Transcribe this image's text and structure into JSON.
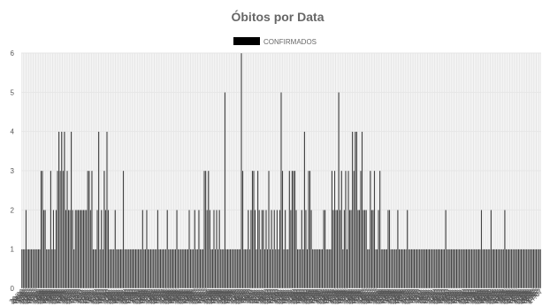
{
  "chart_data": {
    "type": "bar",
    "title": "Óbitos por Data",
    "legend": {
      "position": "top",
      "color": "#000000"
    },
    "grid": true,
    "ylim": [
      0,
      6
    ],
    "yticks": [
      "0",
      "1",
      "2",
      "3",
      "4",
      "5",
      "6"
    ],
    "xticks": [
      "26/06",
      "29/06",
      "02/07",
      "05/07",
      "08/07",
      "11/07",
      "14/07",
      "17/07",
      "20/07",
      "23/07",
      "26/07",
      "29/07",
      "01/08",
      "04/08",
      "07/08",
      "10/08",
      "13/08",
      "16/08",
      "19/08",
      "22/08",
      "25/08",
      "28/08",
      "31/08",
      "03/09",
      "06/09",
      "09/09",
      "12/09",
      "15/09",
      "18/09",
      "21/09",
      "24/09",
      "27/09",
      "30/09",
      "03/10",
      "06/10",
      "09/10",
      "12/10",
      "15/10",
      "18/10",
      "21/10",
      "24/10",
      "27/10",
      "30/10",
      "02/11",
      "05/11",
      "08/11",
      "11/11",
      "14/11",
      "17/11",
      "20/11",
      "23/11",
      "26/11",
      "29/11",
      "02/12",
      "05/12",
      "08/12",
      "11/12",
      "14/12",
      "17/12",
      "20/12",
      "23/12",
      "26/12",
      "29/12",
      "01/01",
      "04/01",
      "07/01",
      "10/01",
      "13/01",
      "16/01",
      "19/01",
      "22/01",
      "25/01",
      "28/01",
      "31/01",
      "03/02",
      "06/02",
      "09/02",
      "12/02",
      "15/02",
      "18/02",
      "21/02",
      "24/02",
      "27/02",
      "02/03",
      "05/03",
      "08/03",
      "11/03",
      "14/03",
      "17/03",
      "20/03",
      "23/03",
      "26/03",
      "29/03",
      "01/04",
      "04/04",
      "07/04",
      "10/04",
      "13/04",
      "16/04",
      "19/04",
      "22/04",
      "25/04",
      "28/04",
      "01/05",
      "04/05",
      "07/05",
      "10/05",
      "13/05",
      "16/05",
      "19/05",
      "22/05",
      "25/05",
      "28/05",
      "31/05",
      "03/06",
      "06/06",
      "09/06",
      "12/06",
      "15/06",
      "18/06",
      "21/06",
      "24/06",
      "27/06",
      "30/06",
      "03/07",
      "06/07",
      "09/07",
      "12/07",
      "15/07",
      "18/07",
      "21/07",
      "24/07",
      "27/07",
      "30/07",
      "02/08",
      "05/08",
      "08/08",
      "11/08",
      "14/08",
      "17/08",
      "20/08",
      "23/08",
      "26/08",
      "29/08",
      "01/09",
      "04/09",
      "07/09",
      "10/09",
      "13/09",
      "16/09",
      "19/09",
      "22/09",
      "25/09",
      "28/09",
      "01/10",
      "04/10",
      "07/10",
      "10/10",
      "13/10",
      "16/10",
      "19/10",
      "22/10",
      "25/10",
      "28/10",
      "31/10",
      "03/11",
      "06/11",
      "09/11",
      "12/11",
      "15/11",
      "18/11",
      "21/11",
      "24/11",
      "27/11",
      "30/11",
      "03/12",
      "06/12",
      "09/12",
      "12/12",
      "15/12",
      "18/12",
      "21/12",
      "24/12",
      "27/12",
      "30/12",
      "02/01",
      "05/01",
      "08/01",
      "11/01",
      "14/01",
      "17/01",
      "20/01",
      "23/01",
      "26/01",
      "29/01",
      "01/02",
      "04/02",
      "07/02",
      "10/02",
      "13/02",
      "16/02",
      "19/02",
      "22/02",
      "25/02",
      "28/02",
      "03/03",
      "06/03",
      "09/03",
      "12/03",
      "15/03",
      "18/03",
      "21/03",
      "24/03",
      "27/03",
      "30/03",
      "02/04",
      "05/04",
      "08/04",
      "11/04",
      "14/04",
      "17/04",
      "20/04",
      "23/04",
      "26/04",
      "29/04",
      "02/05",
      "05/05",
      "08/05",
      "11/05",
      "14/05",
      "17/05",
      "20/05",
      "23/05",
      "26/05",
      "29/05",
      "01/06",
      "04/06",
      "07/06",
      "10/06",
      "13/06",
      "16/06",
      "19/06",
      "22/06",
      "25/06",
      "28/06",
      "01/07",
      "04/07",
      "07/07",
      "10/07",
      "13/07",
      "16/07",
      "19/07",
      "22/07",
      "25/07",
      "28/07",
      "31/07",
      "03/08",
      "06/08",
      "09/08",
      "12/08",
      "15/08",
      "18/08",
      "21/08",
      "24/08",
      "27/08",
      "30/08",
      "02/09",
      "05/09",
      "08/09",
      "11/09",
      "14/09",
      "17/09",
      "20/09",
      "23/09",
      "26/09",
      "29/09",
      "02/10",
      "05/10",
      "08/10",
      "11/10",
      "14/10",
      "17/10",
      "20/10",
      "23/10",
      "26/10",
      "29/10",
      "01/11",
      "04/11",
      "07/11",
      "10/11",
      "13/11",
      "16/11",
      "19/11",
      "22/11",
      "25/11",
      "28/11",
      "01/12",
      "04/12",
      "07/12",
      "10/12",
      "13/12",
      "16/12",
      "19/12",
      "22/12",
      "25/12",
      "28/12",
      "31/12",
      "03/01",
      "06/01",
      "09/01",
      "12/01",
      "15/01",
      "18/01",
      "21/01",
      "24/01",
      "27/01",
      "30/01",
      "02/02",
      "05/02",
      "08/02",
      "11/02",
      "14/02",
      "17/02",
      "20/02",
      "23/02",
      "26/02",
      "01/03",
      "04/03",
      "07/03",
      "10/03",
      "13/03",
      "16/03",
      "19/03",
      "22/03",
      "25/03",
      "28/03",
      "31/03",
      "03/04",
      "06/04",
      "09/04",
      "12/04",
      "15/04",
      "18/04",
      "21/04",
      "24/04",
      "27/04",
      "30/04",
      "03/05",
      "06/05",
      "09/05",
      "12/05",
      "15/05",
      "18/05",
      "21/05",
      "24/05",
      "27/05",
      "30/05",
      "02/06",
      "05/06",
      "08/06",
      "11/06",
      "14/06",
      "17/06",
      "20/06",
      "23/06",
      "26/06",
      "29/06",
      "02/07",
      "05/07",
      "08/07",
      "11/07",
      "14/07",
      "17/07"
    ],
    "series": [
      {
        "name": "CONFIRMADOS",
        "color": "#424242",
        "values": [
          1,
          1,
          1,
          2,
          1,
          1,
          1,
          1,
          1,
          1,
          1,
          1,
          1,
          1,
          3,
          3,
          2,
          2,
          1,
          1,
          1,
          3,
          1,
          2,
          1,
          2,
          3,
          4,
          3,
          4,
          3,
          4,
          2,
          3,
          2,
          2,
          4,
          2,
          1,
          2,
          2,
          2,
          2,
          2,
          2,
          2,
          2,
          2,
          3,
          3,
          2,
          3,
          1,
          1,
          1,
          2,
          4,
          1,
          2,
          1,
          3,
          2,
          4,
          2,
          1,
          1,
          1,
          1,
          2,
          1,
          1,
          1,
          1,
          1,
          3,
          1,
          1,
          1,
          1,
          1,
          1,
          1,
          1,
          1,
          1,
          1,
          1,
          1,
          2,
          1,
          1,
          2,
          1,
          1,
          1,
          1,
          1,
          1,
          1,
          2,
          1,
          1,
          1,
          1,
          1,
          1,
          2,
          1,
          1,
          1,
          1,
          1,
          1,
          2,
          1,
          1,
          1,
          1,
          1,
          1,
          1,
          1,
          2,
          1,
          1,
          1,
          2,
          1,
          1,
          2,
          1,
          1,
          1,
          3,
          3,
          2,
          3,
          2,
          1,
          1,
          2,
          1,
          2,
          1,
          2,
          1,
          1,
          1,
          5,
          1,
          1,
          1,
          1,
          1,
          1,
          1,
          1,
          1,
          1,
          1,
          6,
          3,
          1,
          1,
          1,
          2,
          1,
          2,
          3,
          3,
          2,
          1,
          3,
          2,
          1,
          2,
          2,
          1,
          2,
          1,
          3,
          1,
          2,
          1,
          2,
          1,
          2,
          1,
          2,
          5,
          3,
          1,
          2,
          1,
          1,
          3,
          2,
          3,
          3,
          3,
          2,
          1,
          1,
          1,
          2,
          1,
          4,
          2,
          1,
          3,
          3,
          2,
          1,
          1,
          1,
          1,
          1,
          1,
          1,
          1,
          2,
          2,
          1,
          1,
          1,
          1,
          3,
          2,
          3,
          2,
          2,
          5,
          2,
          3,
          1,
          2,
          3,
          1,
          3,
          2,
          2,
          4,
          3,
          4,
          4,
          2,
          2,
          3,
          4,
          2,
          2,
          2,
          1,
          1,
          3,
          2,
          2,
          3,
          1,
          1,
          2,
          3,
          1,
          1,
          1,
          1,
          1,
          2,
          2,
          1,
          1,
          1,
          1,
          1,
          2,
          1,
          1,
          1,
          1,
          1,
          1,
          2,
          1,
          1,
          1,
          1,
          1,
          1,
          1,
          1,
          1,
          1,
          1,
          1,
          1,
          1,
          1,
          1,
          1,
          1,
          1,
          1,
          1,
          1,
          1,
          1,
          1,
          1,
          1,
          2,
          1,
          1,
          1,
          1,
          1,
          1,
          1,
          1,
          1,
          1,
          1,
          1,
          1,
          1,
          1,
          1,
          1,
          1,
          1,
          1,
          1,
          1,
          1,
          1,
          1,
          2,
          1,
          1,
          1,
          1,
          1,
          1,
          2,
          1,
          1,
          1,
          1,
          1,
          1,
          1,
          1,
          1,
          2,
          1,
          1,
          1,
          1,
          1,
          1,
          1,
          1,
          1,
          1,
          1,
          1,
          1,
          1,
          1,
          1,
          1,
          1,
          1,
          1,
          1,
          1,
          1,
          1,
          1,
          1
        ]
      }
    ]
  }
}
